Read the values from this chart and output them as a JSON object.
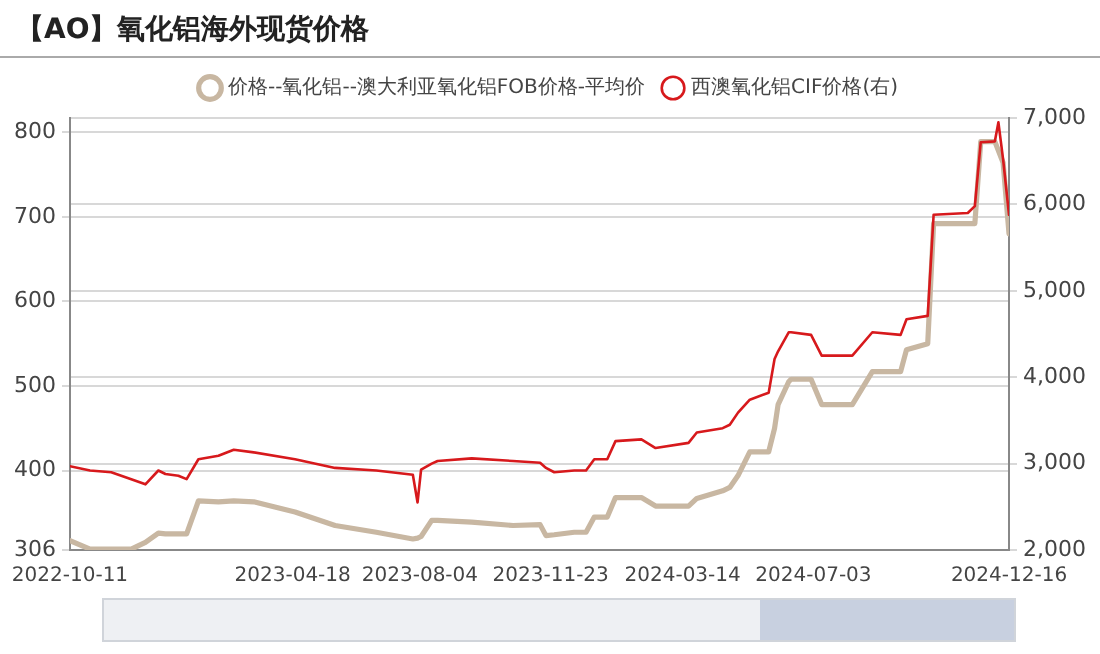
{
  "chart_data": {
    "type": "line",
    "title": "【AO】氧化铝海外现货价格",
    "xlim": [
      "2022-10-11",
      "2024-12-16"
    ],
    "xticks": [
      {
        "value": "2022-10-11",
        "label": "2022-10-11"
      },
      {
        "value": "2023-04-18",
        "label": "2023-04-18"
      },
      {
        "value": "2023-08-04",
        "label": "2023-08-04"
      },
      {
        "value": "2023-11-23",
        "label": "2023-11-23"
      },
      {
        "value": "2024-03-14",
        "label": "2024-03-14"
      },
      {
        "value": "2024-07-03",
        "label": "2024-07-03"
      },
      {
        "value": "2024-12-16",
        "label": "2024-12-16"
      }
    ],
    "ylim": [
      306,
      817
    ],
    "yticks": [
      306,
      400,
      500,
      600,
      700,
      800
    ],
    "y2lim": [
      2000,
      7000
    ],
    "y2ticks": [
      {
        "value": 2000,
        "label": "2,000"
      },
      {
        "value": 3000,
        "label": "3,000"
      },
      {
        "value": 4000,
        "label": "4,000"
      },
      {
        "value": 5000,
        "label": "5,000"
      },
      {
        "value": 6000,
        "label": "6,000"
      },
      {
        "value": 7000,
        "label": "7,000"
      }
    ],
    "grid": "y",
    "legend": "top",
    "x": [
      "2022-10-11",
      "2022-10-28",
      "2022-11-15",
      "2022-12-02",
      "2022-12-14",
      "2022-12-25",
      "2022-12-31",
      "2023-01-11",
      "2023-01-18",
      "2023-01-28",
      "2023-02-14",
      "2023-02-27",
      "2023-03-16",
      "2023-04-20",
      "2023-05-24",
      "2023-06-28",
      "2023-07-29",
      "2023-08-02",
      "2023-08-05",
      "2023-08-14",
      "2023-08-19",
      "2023-09-17",
      "2023-10-22",
      "2023-11-14",
      "2023-11-19",
      "2023-11-26",
      "2023-12-13",
      "2023-12-23",
      "2023-12-30",
      "2024-01-10",
      "2024-01-17",
      "2024-02-08",
      "2024-02-20",
      "2024-03-19",
      "2024-03-26",
      "2024-04-17",
      "2024-04-23",
      "2024-04-30",
      "2024-05-10",
      "2024-05-26",
      "2024-05-31",
      "2024-06-03",
      "2024-06-12",
      "2024-06-14",
      "2024-07-01",
      "2024-07-10",
      "2024-08-05",
      "2024-08-22",
      "2024-09-15",
      "2024-09-20",
      "2024-10-08",
      "2024-10-13",
      "2024-11-11",
      "2024-11-17",
      "2024-11-22",
      "2024-12-04",
      "2024-12-07",
      "2024-12-11",
      "2024-12-16"
    ],
    "series": [
      {
        "name": "价格--氧化铝--澳大利亚氧化铝FOB价格-平均价",
        "color": "#c8b7a2",
        "values": [
          317,
          307,
          307,
          307,
          315,
          326,
          325,
          325,
          325,
          364,
          363,
          364,
          363,
          351,
          335,
          327,
          319,
          320,
          322,
          341,
          341,
          339,
          335,
          336,
          323,
          324,
          327,
          327,
          345,
          345,
          368,
          368,
          358,
          358,
          367,
          376,
          380,
          394,
          422,
          422,
          450,
          478,
          505,
          508,
          508,
          478,
          478,
          517,
          517,
          543,
          550,
          692,
          692,
          692,
          789,
          789,
          null,
          764,
          680
        ]
      },
      {
        "name": "西澳氧化铝CIF价格(右)",
        "color": "#d7191c",
        "axis": "y2",
        "values": [
          2970,
          2920,
          2900,
          2820,
          2760,
          2920,
          2880,
          2860,
          2820,
          3050,
          3090,
          3160,
          3130,
          3050,
          2950,
          2920,
          2870,
          2550,
          2930,
          3000,
          3030,
          3060,
          3030,
          3010,
          2950,
          2900,
          2920,
          2920,
          3050,
          3050,
          3260,
          3280,
          3180,
          3240,
          3360,
          3410,
          3450,
          3590,
          3740,
          3820,
          4210,
          4300,
          4520,
          4520,
          4490,
          4250,
          4250,
          4520,
          4490,
          4670,
          4710,
          5880,
          5900,
          5980,
          6720,
          6730,
          6950,
          6520,
          5880
        ]
      }
    ]
  }
}
